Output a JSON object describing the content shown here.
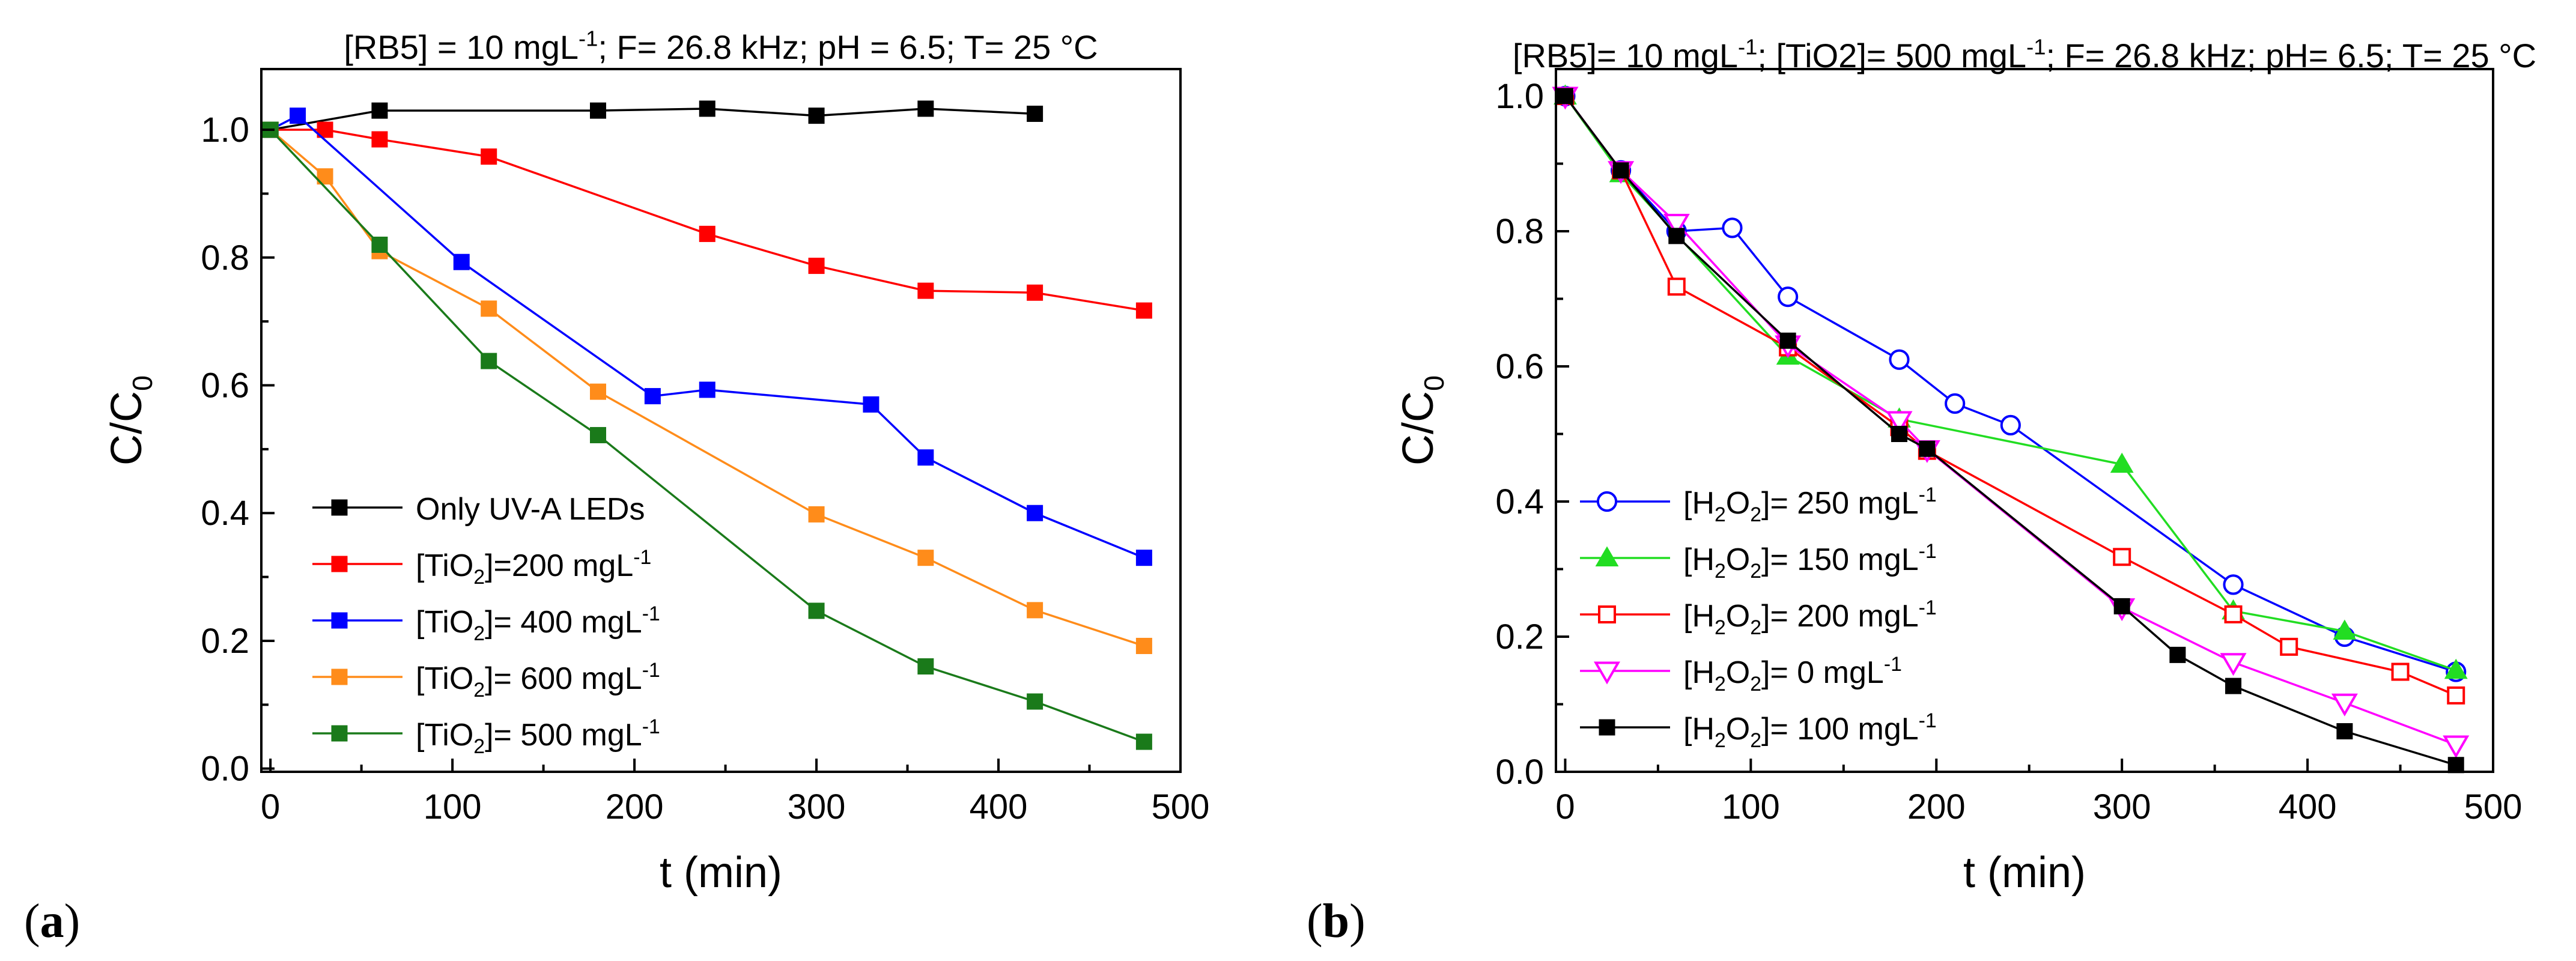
{
  "chart_data": [
    {
      "type": "line",
      "panel_label": "(a)",
      "panel_letter": "a",
      "title": "[RB5] = 10 mgL⁻¹; F= 26.8 kHz; pH = 6.5; T= 25 °C",
      "xlabel": "t (min)",
      "ylabel": "C/C₀",
      "xlim": [
        -5,
        500
      ],
      "ylim": [
        -0.005,
        1.095
      ],
      "xticks": [
        0,
        100,
        200,
        300,
        400,
        500
      ],
      "yticks": [
        0.0,
        0.2,
        0.4,
        0.6,
        0.8,
        1.0
      ],
      "ytick_labels": [
        "0.0",
        "0.2",
        "0.4",
        "0.6",
        "0.8",
        "1.0"
      ],
      "legend_position": "bottom-left",
      "series": [
        {
          "name": "Only UV-A LEDs",
          "color": "#000000",
          "marker": "square-filled",
          "x": [
            0,
            60,
            180,
            240,
            300,
            360,
            420
          ],
          "y": [
            1.0,
            1.03,
            1.03,
            1.033,
            1.022,
            1.033,
            1.025
          ]
        },
        {
          "name": "[TiO₂]=200 mgL⁻¹",
          "color": "#ff0000",
          "marker": "square-filled",
          "x": [
            0,
            30,
            60,
            120,
            240,
            300,
            360,
            420,
            480
          ],
          "y": [
            1.0,
            1.0,
            0.985,
            0.958,
            0.837,
            0.787,
            0.748,
            0.745,
            0.717
          ]
        },
        {
          "name": "[TiO₂]= 400 mgL⁻¹",
          "color": "#0000ff",
          "marker": "square-filled",
          "x": [
            0,
            15,
            105,
            210,
            240,
            330,
            360,
            420,
            480
          ],
          "y": [
            1.0,
            1.022,
            0.793,
            0.583,
            0.593,
            0.57,
            0.487,
            0.4,
            0.33
          ]
        },
        {
          "name": "[TiO₂]= 600 mgL⁻¹",
          "color": "#ff8c1a",
          "marker": "square-filled",
          "x": [
            0,
            30,
            60,
            120,
            180,
            300,
            360,
            420,
            480
          ],
          "y": [
            1.0,
            0.927,
            0.81,
            0.72,
            0.59,
            0.398,
            0.33,
            0.248,
            0.192
          ]
        },
        {
          "name": "[TiO₂]= 500 mgL⁻¹",
          "color": "#1a7a1a",
          "marker": "square-filled",
          "x": [
            0,
            60,
            120,
            180,
            300,
            360,
            420,
            480
          ],
          "y": [
            1.0,
            0.82,
            0.638,
            0.522,
            0.247,
            0.16,
            0.105,
            0.042
          ]
        }
      ]
    },
    {
      "type": "line",
      "panel_label": "(b)",
      "panel_letter": "b",
      "title": "[RB5]= 10 mgL⁻¹; [TiO2]= 500 mgL⁻¹; F= 26.8 kHz; pH= 6.5; T= 25 °C",
      "xlabel": "t (min)",
      "ylabel": "C/C₀",
      "xlim": [
        -5,
        500
      ],
      "ylim": [
        0.0,
        1.04
      ],
      "xticks": [
        0,
        100,
        200,
        300,
        400,
        500
      ],
      "yticks": [
        0.0,
        0.2,
        0.4,
        0.6,
        0.8,
        1.0
      ],
      "ytick_labels": [
        "0.0",
        "0.2",
        "0.4",
        "0.6",
        "0.8",
        "1.0"
      ],
      "legend_position": "bottom-left",
      "series": [
        {
          "name": "[H₂O₂]= 250 mgL⁻¹",
          "color": "#0000ff",
          "marker": "circle-open",
          "x": [
            0,
            30,
            60,
            90,
            120,
            180,
            210,
            240,
            360,
            420,
            480
          ],
          "y": [
            1.0,
            0.89,
            0.8,
            0.805,
            0.703,
            0.61,
            0.545,
            0.513,
            0.277,
            0.2,
            0.148
          ]
        },
        {
          "name": "[H₂O₂]= 150 mgL⁻¹",
          "color": "#22dd22",
          "marker": "triangle-up-filled",
          "x": [
            0,
            30,
            120,
            180,
            300,
            360,
            420,
            480
          ],
          "y": [
            1.0,
            0.885,
            0.615,
            0.522,
            0.455,
            0.238,
            0.208,
            0.15
          ]
        },
        {
          "name": "[H₂O₂]= 200 mgL⁻¹",
          "color": "#ff0000",
          "marker": "square-open",
          "x": [
            0,
            30,
            60,
            120,
            180,
            195,
            300,
            360,
            390,
            450,
            480
          ],
          "y": [
            1.0,
            0.89,
            0.718,
            0.628,
            0.51,
            0.475,
            0.318,
            0.233,
            0.185,
            0.148,
            0.113
          ]
        },
        {
          "name": "[H₂O₂]= 0 mgL⁻¹",
          "color": "#ff00ff",
          "marker": "triangle-down-open",
          "x": [
            0,
            30,
            60,
            120,
            180,
            195,
            300,
            360,
            420,
            480
          ],
          "y": [
            1.0,
            0.89,
            0.812,
            0.632,
            0.52,
            0.477,
            0.243,
            0.162,
            0.102,
            0.04
          ]
        },
        {
          "name": "[H₂O₂]= 100 mgL⁻¹",
          "color": "#000000",
          "marker": "square-filled",
          "x": [
            0,
            30,
            60,
            120,
            180,
            195,
            300,
            330,
            360,
            420,
            480
          ],
          "y": [
            1.0,
            0.89,
            0.793,
            0.638,
            0.5,
            0.478,
            0.245,
            0.173,
            0.127,
            0.06,
            0.01
          ]
        }
      ]
    }
  ]
}
